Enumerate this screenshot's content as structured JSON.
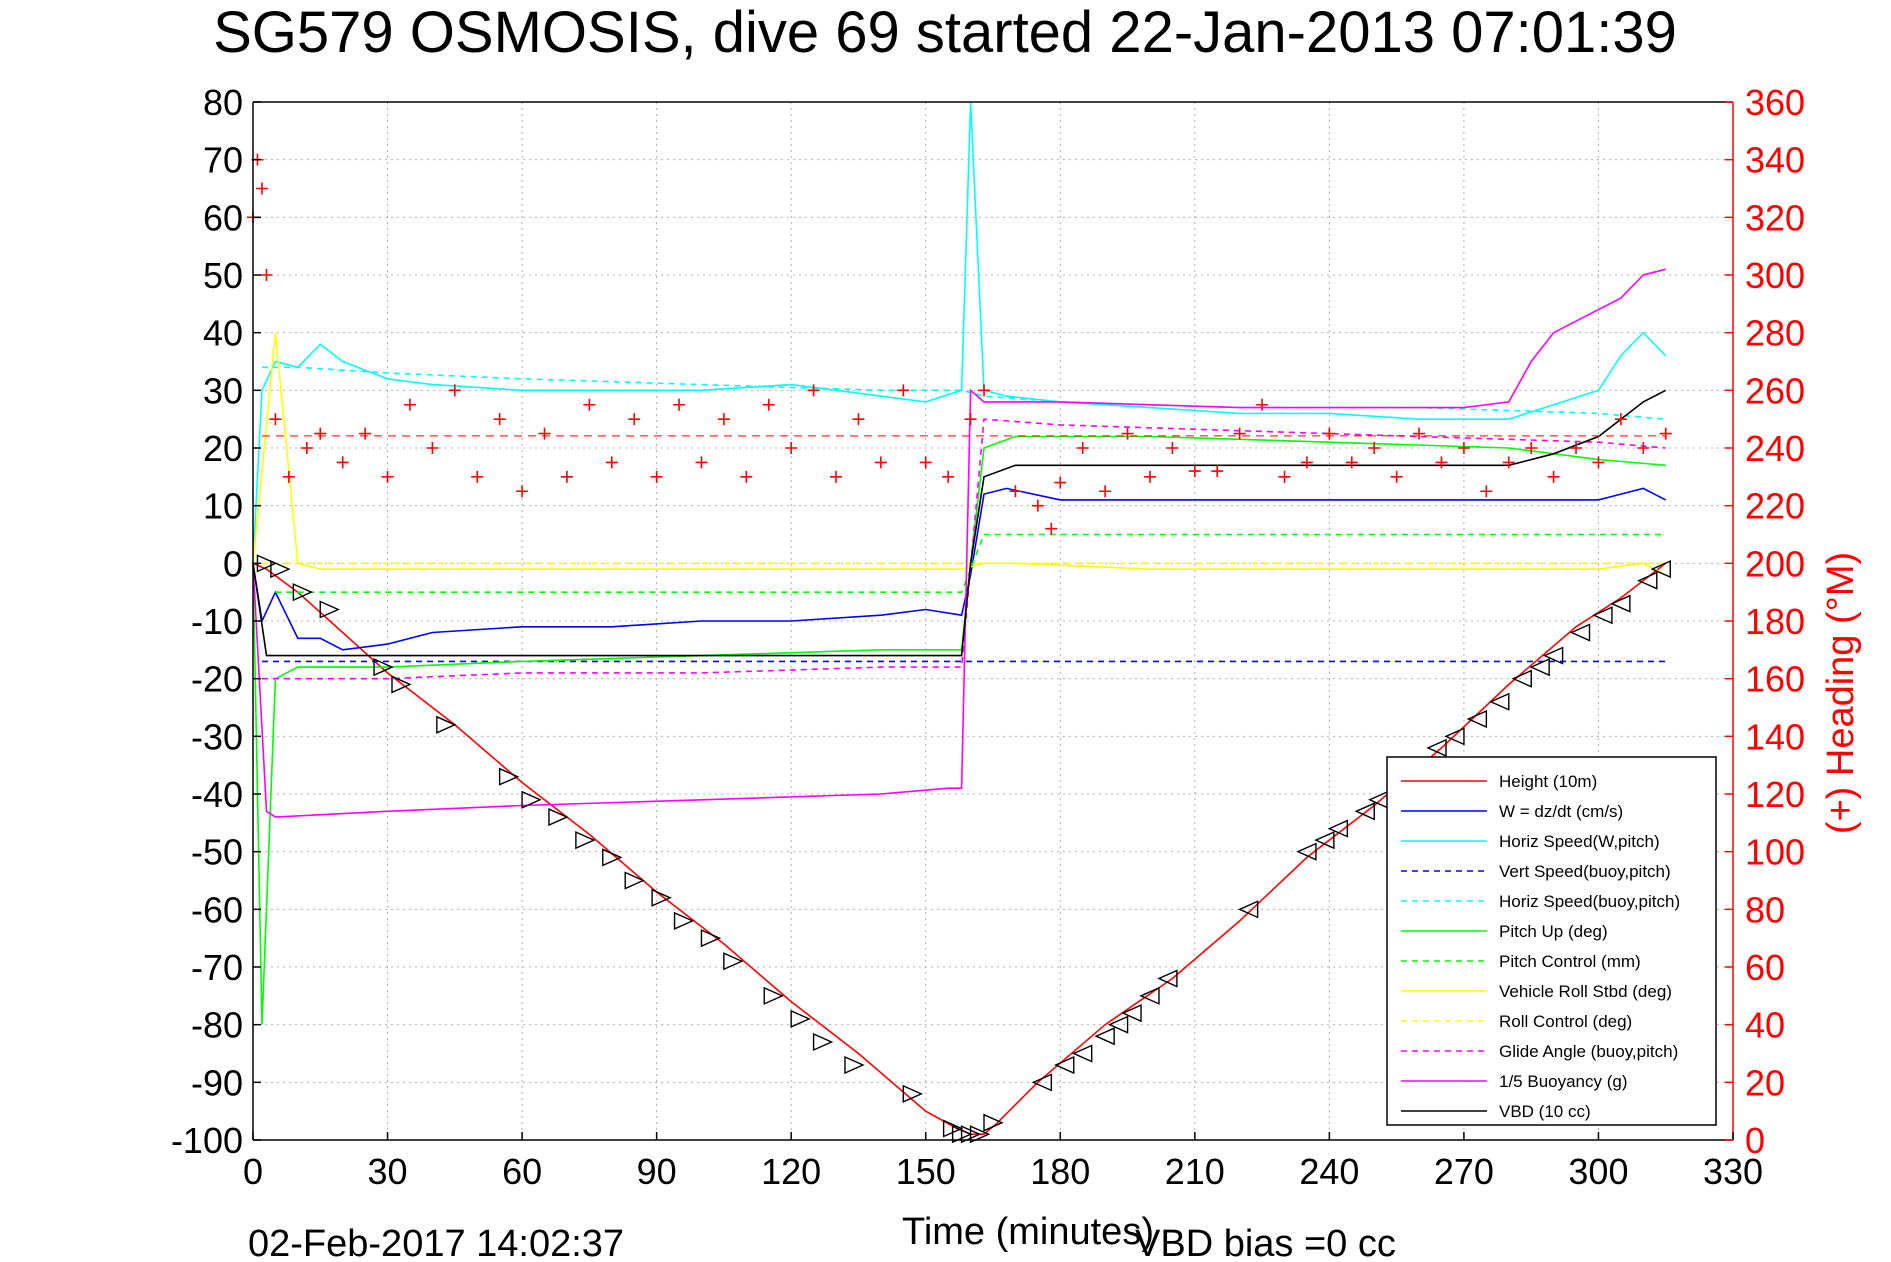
{
  "chart_data": {
    "type": "line",
    "title": "SG579 OSMOSIS, dive 69 started 22-Jan-2013 07:01:39",
    "xlabel": "Time (minutes)",
    "ylabel": "",
    "y2label": "(+) Heading (°M)",
    "footer_left": "02-Feb-2017 14:02:37",
    "footer_right": "VBD bias =0 cc",
    "xlim": [
      0,
      330
    ],
    "ylim": [
      -100,
      80
    ],
    "y2lim": [
      0,
      360
    ],
    "grid": true,
    "legend_position": "bottom-right",
    "x_ticks": [
      0,
      30,
      60,
      90,
      120,
      150,
      180,
      210,
      240,
      270,
      300,
      330
    ],
    "y_ticks": [
      80,
      70,
      60,
      50,
      40,
      30,
      20,
      10,
      0,
      -10,
      -20,
      -30,
      -40,
      -50,
      -60,
      -70,
      -80,
      -90,
      -100
    ],
    "y2_ticks": [
      360,
      340,
      320,
      300,
      280,
      260,
      240,
      220,
      200,
      180,
      160,
      140,
      120,
      100,
      80,
      60,
      40,
      20,
      0
    ],
    "colors": {
      "height": "#ff0000",
      "w": "#0000ff",
      "horiz_speed": "#00ffff",
      "pitch": "#00ff00",
      "roll": "#ffff00",
      "glide": "#ff00ff",
      "buoyancy": "#ff00ff",
      "vbd": "#000000",
      "heading": "#ff0000",
      "right_axis": "#ff0000"
    },
    "series": [
      {
        "name": "Height (10m)",
        "color": "#ff0000",
        "dash": "none",
        "x": [
          0,
          3,
          10,
          20,
          30,
          45,
          60,
          75,
          90,
          105,
          120,
          135,
          150,
          157,
          160,
          163,
          166,
          175,
          190,
          205,
          220,
          235,
          250,
          265,
          280,
          295,
          305,
          315
        ],
        "y": [
          0,
          -1,
          -5,
          -12,
          -19,
          -28,
          -38,
          -47,
          -57,
          -66,
          -76,
          -85,
          -95,
          -98,
          -99,
          -99,
          -97,
          -90,
          -80,
          -72,
          -62,
          -51,
          -42,
          -32,
          -21,
          -11,
          -6,
          0
        ]
      },
      {
        "name": "W = dz/dt (cm/s)",
        "color": "#0000ff",
        "dash": "none",
        "x": [
          0,
          2,
          5,
          10,
          15,
          20,
          30,
          40,
          60,
          80,
          100,
          120,
          140,
          150,
          158,
          160,
          163,
          168,
          180,
          200,
          220,
          240,
          260,
          280,
          300,
          305,
          310,
          315
        ],
        "y": [
          0,
          -10,
          -5,
          -13,
          -13,
          -15,
          -14,
          -12,
          -11,
          -11,
          -10,
          -10,
          -9,
          -8,
          -9,
          -2,
          12,
          13,
          11,
          11,
          11,
          11,
          11,
          11,
          11,
          12,
          13,
          11
        ]
      },
      {
        "name": "Horiz Speed(W,pitch)",
        "color": "#00ffff",
        "dash": "none",
        "x": [
          0,
          2,
          5,
          10,
          15,
          20,
          30,
          40,
          60,
          80,
          100,
          120,
          140,
          150,
          158,
          160,
          163,
          168,
          180,
          200,
          220,
          240,
          260,
          280,
          300,
          305,
          310,
          315
        ],
        "y": [
          0,
          30,
          35,
          34,
          38,
          35,
          32,
          31,
          30,
          30,
          30,
          31,
          29,
          28,
          30,
          80,
          30,
          29,
          28,
          27,
          26,
          26,
          25,
          25,
          30,
          36,
          40,
          36
        ]
      },
      {
        "name": "Vert Speed(buoy,pitch)",
        "color": "#0000ff",
        "dash": "6,5",
        "x": [
          2,
          160,
          163,
          315
        ],
        "y": [
          -17,
          -17,
          -17,
          -17
        ]
      },
      {
        "name": "Horiz Speed(buoy,pitch)",
        "color": "#00ffff",
        "dash": "6,5",
        "x": [
          2,
          10,
          30,
          60,
          100,
          140,
          158,
          163,
          180,
          220,
          260,
          300,
          315
        ],
        "y": [
          34,
          34,
          33,
          32,
          31,
          30,
          30,
          29,
          28,
          27,
          27,
          26,
          25
        ]
      },
      {
        "name": "Pitch Up (deg)",
        "color": "#00ff00",
        "dash": "none",
        "x": [
          0,
          2,
          5,
          10,
          30,
          60,
          100,
          140,
          158,
          160,
          163,
          170,
          200,
          240,
          280,
          300,
          315
        ],
        "y": [
          0,
          -80,
          -20,
          -18,
          -18,
          -17,
          -16,
          -15,
          -15,
          0,
          20,
          22,
          22,
          21,
          20,
          18,
          17
        ]
      },
      {
        "name": "Pitch Control (mm)",
        "color": "#00ff00",
        "dash": "6,5",
        "x": [
          5,
          158,
          163,
          315
        ],
        "y": [
          -5,
          -5,
          5,
          5
        ]
      },
      {
        "name": "Vehicle Roll Stbd (deg)",
        "color": "#ffff00",
        "dash": "none",
        "x": [
          0,
          5,
          10,
          15,
          20,
          30,
          60,
          90,
          120,
          150,
          158,
          163,
          170,
          200,
          240,
          280,
          300,
          310,
          315
        ],
        "y": [
          0,
          40,
          0,
          -1,
          -1,
          -1,
          -1,
          -1,
          -1,
          -1,
          -1,
          0,
          0,
          -1,
          -1,
          -1,
          -1,
          0,
          -2
        ]
      },
      {
        "name": "Roll Control (deg)",
        "color": "#ffff00",
        "dash": "6,5",
        "x": [
          2,
          158,
          163,
          315
        ],
        "y": [
          0,
          0,
          0,
          0
        ]
      },
      {
        "name": "Glide Angle (buoy,pitch)",
        "color": "#ff00ff",
        "dash": "6,5",
        "x": [
          2,
          10,
          30,
          60,
          100,
          140,
          158,
          163,
          180,
          220,
          260,
          300,
          315
        ],
        "y": [
          -20,
          -20,
          -20,
          -19,
          -19,
          -18,
          -18,
          25,
          24,
          23,
          22,
          21,
          20
        ]
      },
      {
        "name": "1/5 Buoyancy (g)",
        "color": "#ff00ff",
        "dash": "none",
        "x": [
          0,
          3,
          5,
          30,
          60,
          100,
          140,
          155,
          158,
          160,
          163,
          180,
          220,
          270,
          280,
          285,
          290,
          300,
          305,
          310,
          315
        ],
        "y": [
          0,
          -43,
          -44,
          -43,
          -42,
          -41,
          -40,
          -39,
          -39,
          30,
          28,
          28,
          27,
          27,
          28,
          35,
          40,
          44,
          46,
          50,
          51
        ]
      },
      {
        "name": "VBD (10 cc)",
        "color": "#000000",
        "dash": "none",
        "x": [
          0,
          3,
          5,
          158,
          160,
          163,
          170,
          200,
          240,
          280,
          290,
          300,
          305,
          310,
          315
        ],
        "y": [
          0,
          -16,
          -16,
          -16,
          0,
          15,
          17,
          17,
          17,
          17,
          19,
          22,
          25,
          28,
          30
        ]
      },
      {
        "name": "Heading",
        "axis": "right",
        "color": "#ff0000",
        "marker": "+",
        "x": [
          0,
          1,
          2,
          3,
          5,
          8,
          12,
          15,
          20,
          25,
          30,
          35,
          40,
          45,
          50,
          55,
          60,
          65,
          70,
          75,
          80,
          85,
          90,
          95,
          100,
          105,
          110,
          115,
          120,
          125,
          130,
          135,
          140,
          145,
          150,
          155,
          160,
          163,
          170,
          175,
          178,
          180,
          185,
          190,
          195,
          200,
          205,
          210,
          215,
          220,
          225,
          230,
          235,
          240,
          245,
          250,
          255,
          260,
          265,
          270,
          275,
          280,
          285,
          290,
          295,
          300,
          305,
          310,
          315
        ],
        "y": [
          320,
          340,
          330,
          300,
          250,
          230,
          240,
          245,
          235,
          245,
          230,
          255,
          240,
          260,
          230,
          250,
          225,
          245,
          230,
          255,
          235,
          250,
          230,
          255,
          235,
          250,
          230,
          255,
          240,
          260,
          230,
          250,
          235,
          260,
          235,
          230,
          250,
          260,
          225,
          220,
          212,
          228,
          240,
          225,
          245,
          230,
          240,
          232,
          232,
          245,
          255,
          230,
          235,
          245,
          235,
          240,
          230,
          245,
          235,
          240,
          225,
          235,
          240,
          230,
          240,
          235,
          250,
          240,
          245
        ]
      }
    ],
    "vbd_markers": {
      "name": "VBD (10 cc)",
      "marker": "triangle",
      "x": [
        3,
        6,
        11,
        17,
        29,
        33,
        43,
        57,
        62,
        68,
        74,
        80,
        85,
        91,
        96,
        102,
        107,
        116,
        122,
        127,
        134,
        147,
        156,
        158,
        160,
        162,
        165,
        176,
        181,
        185,
        190,
        193,
        196,
        200,
        204,
        222,
        235,
        239,
        242,
        248,
        251,
        261,
        264,
        268,
        273,
        278,
        283,
        287,
        290,
        296,
        301,
        305,
        311,
        314
      ],
      "y": [
        0,
        -1,
        -5,
        -8,
        -18,
        -21,
        -28,
        -37,
        -41,
        -44,
        -48,
        -51,
        -55,
        -58,
        -62,
        -65,
        -69,
        -75,
        -79,
        -83,
        -87,
        -92,
        -98,
        -99,
        -99,
        -99,
        -97,
        -90,
        -87,
        -85,
        -82,
        -80,
        -78,
        -75,
        -72,
        -60,
        -50,
        -48,
        -46,
        -43,
        -41,
        -35,
        -32,
        -30,
        -27,
        -24,
        -20,
        -18,
        -16,
        -12,
        -9,
        -7,
        -3,
        -1
      ]
    }
  },
  "legend_entries": [
    {
      "label": "Height (10m)",
      "color": "#ff0000",
      "dash": "none"
    },
    {
      "label": "W = dz/dt (cm/s)",
      "color": "#0000ff",
      "dash": "none"
    },
    {
      "label": "Horiz Speed(W,pitch)",
      "color": "#00ffff",
      "dash": "none"
    },
    {
      "label": "Vert Speed(buoy,pitch)",
      "color": "#0000ff",
      "dash": "6,5"
    },
    {
      "label": "Horiz Speed(buoy,pitch)",
      "color": "#00ffff",
      "dash": "6,5"
    },
    {
      "label": "Pitch Up (deg)",
      "color": "#00ff00",
      "dash": "none"
    },
    {
      "label": "Pitch Control (mm)",
      "color": "#00ff00",
      "dash": "6,5"
    },
    {
      "label": "Vehicle Roll Stbd (deg)",
      "color": "#ffff00",
      "dash": "none"
    },
    {
      "label": "Roll Control (deg)",
      "color": "#ffff00",
      "dash": "6,5"
    },
    {
      "label": "Glide Angle (buoy,pitch)",
      "color": "#ff00ff",
      "dash": "6,5"
    },
    {
      "label": "1/5 Buoyancy (g)",
      "color": "#ff00ff",
      "dash": "none"
    },
    {
      "label": "VBD (10 cc)",
      "color": "#000000",
      "dash": "none"
    }
  ]
}
